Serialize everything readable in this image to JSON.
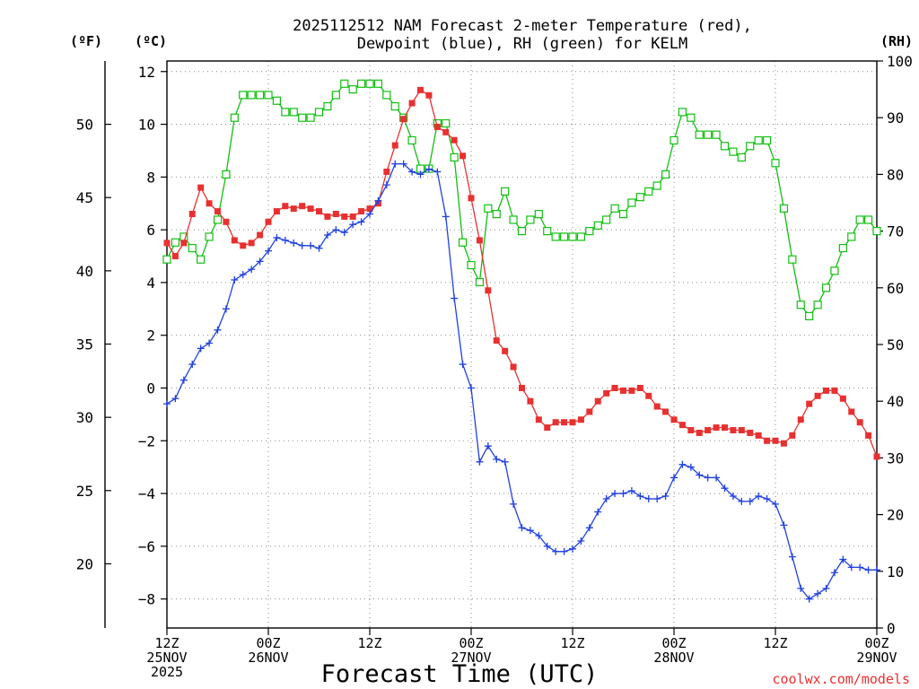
{
  "chart_data": {
    "type": "line",
    "title": [
      "2025112512 NAM Forecast 2-meter Temperature (red),",
      "Dewpoint (blue), RH (green) for KELM"
    ],
    "xlabel": "Forecast Time (UTC)",
    "credit": "coolwx.com/models",
    "units": {
      "fahrenheit": "(ºF)",
      "celsius": "(ºC)",
      "rh": "(RH)"
    },
    "x_range_hours": [
      0,
      84
    ],
    "x_ticks": [
      {
        "h": 0,
        "lines": [
          "12Z",
          "25NOV",
          "2025"
        ]
      },
      {
        "h": 12,
        "lines": [
          "00Z",
          "26NOV"
        ]
      },
      {
        "h": 24,
        "lines": [
          "12Z"
        ]
      },
      {
        "h": 36,
        "lines": [
          "00Z",
          "27NOV"
        ]
      },
      {
        "h": 48,
        "lines": [
          "12Z"
        ]
      },
      {
        "h": 60,
        "lines": [
          "00Z",
          "28NOV"
        ]
      },
      {
        "h": 72,
        "lines": [
          "12Z"
        ]
      },
      {
        "h": 84,
        "lines": [
          "00Z",
          "29NOV"
        ]
      }
    ],
    "celsius_axis": {
      "min": -9.1,
      "max": 12.4,
      "ticks": [
        12,
        10,
        8,
        6,
        4,
        2,
        0,
        -2,
        -4,
        -6,
        -8
      ]
    },
    "fahrenheit_ticks": [
      50,
      45,
      40,
      35,
      30,
      25,
      20
    ],
    "rh_axis": {
      "min": 0,
      "max": 100,
      "ticks": [
        100,
        90,
        80,
        70,
        60,
        50,
        40,
        30,
        20,
        10,
        0
      ]
    },
    "colors": {
      "temperature": "#e83030",
      "dewpoint": "#2040e0",
      "rh": "#10c010"
    },
    "series": [
      {
        "name": "Temperature",
        "unit": "C",
        "marker": "filled-square",
        "x": [
          0,
          1,
          2,
          3,
          4,
          5,
          6,
          7,
          8,
          9,
          10,
          11,
          12,
          13,
          14,
          15,
          16,
          17,
          18,
          19,
          20,
          21,
          22,
          23,
          24,
          25,
          26,
          27,
          28,
          29,
          30,
          31,
          32,
          33,
          34,
          35,
          36,
          37,
          38,
          39,
          40,
          41,
          42,
          43,
          44,
          45,
          46,
          47,
          48,
          49,
          50,
          51,
          52,
          53,
          54,
          55,
          56,
          57,
          58,
          59,
          60,
          61,
          62,
          63,
          64,
          65,
          66,
          67,
          68,
          69,
          70,
          71,
          72,
          73,
          74,
          75,
          76,
          77,
          78,
          79,
          80,
          81,
          82,
          83,
          84
        ],
        "values": [
          5.5,
          5.0,
          5.5,
          6.6,
          7.6,
          7.0,
          6.7,
          6.3,
          5.6,
          5.4,
          5.5,
          5.8,
          6.3,
          6.7,
          6.9,
          6.8,
          6.9,
          6.8,
          6.7,
          6.5,
          6.6,
          6.5,
          6.5,
          6.7,
          6.8,
          7.0,
          8.2,
          9.2,
          10.2,
          10.8,
          11.3,
          11.1,
          9.9,
          9.7,
          9.4,
          8.8,
          7.2,
          5.6,
          3.7,
          1.8,
          1.4,
          0.8,
          0.0,
          -0.5,
          -1.2,
          -1.5,
          -1.3,
          -1.3,
          -1.3,
          -1.2,
          -0.9,
          -0.5,
          -0.2,
          0.0,
          -0.1,
          -0.1,
          0.0,
          -0.3,
          -0.7,
          -0.9,
          -1.2,
          -1.4,
          -1.6,
          -1.7,
          -1.6,
          -1.5,
          -1.5,
          -1.6,
          -1.6,
          -1.7,
          -1.8,
          -2.0,
          -2.0,
          -2.1,
          -1.8,
          -1.2,
          -0.6,
          -0.3,
          -0.1,
          -0.1,
          -0.4,
          -0.9,
          -1.3,
          -1.8,
          -2.6
        ]
      },
      {
        "name": "Dewpoint",
        "unit": "C",
        "marker": "plus",
        "x": [
          0,
          1,
          2,
          3,
          4,
          5,
          6,
          7,
          8,
          9,
          10,
          11,
          12,
          13,
          14,
          15,
          16,
          17,
          18,
          19,
          20,
          21,
          22,
          23,
          24,
          25,
          26,
          27,
          28,
          29,
          30,
          31,
          32,
          33,
          34,
          35,
          36,
          37,
          38,
          39,
          40,
          41,
          42,
          43,
          44,
          45,
          46,
          47,
          48,
          49,
          50,
          51,
          52,
          53,
          54,
          55,
          56,
          57,
          58,
          59,
          60,
          61,
          62,
          63,
          64,
          65,
          66,
          67,
          68,
          69,
          70,
          71,
          72,
          73,
          74,
          75,
          76,
          77,
          78,
          79,
          80,
          81,
          82,
          83,
          84
        ],
        "values": [
          -0.6,
          -0.4,
          0.3,
          0.9,
          1.5,
          1.7,
          2.2,
          3.0,
          4.1,
          4.3,
          4.5,
          4.8,
          5.2,
          5.7,
          5.6,
          5.5,
          5.4,
          5.4,
          5.3,
          5.8,
          6.0,
          5.9,
          6.2,
          6.3,
          6.6,
          7.1,
          7.7,
          8.5,
          8.5,
          8.2,
          8.1,
          8.3,
          8.2,
          6.5,
          3.4,
          0.9,
          0.0,
          -2.8,
          -2.2,
          -2.7,
          -2.8,
          -4.4,
          -5.3,
          -5.4,
          -5.6,
          -6.0,
          -6.2,
          -6.2,
          -6.1,
          -5.8,
          -5.3,
          -4.7,
          -4.2,
          -4.0,
          -4.0,
          -3.9,
          -4.1,
          -4.2,
          -4.2,
          -4.1,
          -3.4,
          -2.9,
          -3.0,
          -3.3,
          -3.4,
          -3.4,
          -3.8,
          -4.1,
          -4.3,
          -4.3,
          -4.1,
          -4.2,
          -4.4,
          -5.2,
          -6.4,
          -7.6,
          -8.0,
          -7.8,
          -7.6,
          -7.0,
          -6.5,
          -6.8,
          -6.8,
          -6.9,
          -6.9
        ]
      },
      {
        "name": "RH",
        "unit": "%",
        "marker": "open-square",
        "x": [
          0,
          1,
          2,
          3,
          4,
          5,
          6,
          7,
          8,
          9,
          10,
          11,
          12,
          13,
          14,
          15,
          16,
          17,
          18,
          19,
          20,
          21,
          22,
          23,
          24,
          25,
          26,
          27,
          28,
          29,
          30,
          31,
          32,
          33,
          34,
          35,
          36,
          37,
          38,
          39,
          40,
          41,
          42,
          43,
          44,
          45,
          46,
          47,
          48,
          49,
          50,
          51,
          52,
          53,
          54,
          55,
          56,
          57,
          58,
          59,
          60,
          61,
          62,
          63,
          64,
          65,
          66,
          67,
          68,
          69,
          70,
          71,
          72,
          73,
          74,
          75,
          76,
          77,
          78,
          79,
          80,
          81,
          82,
          83,
          84
        ],
        "values": [
          65,
          68,
          69,
          67,
          65,
          69,
          72,
          80,
          90,
          94,
          94,
          94,
          94,
          93,
          91,
          91,
          90,
          90,
          91,
          92,
          94,
          96,
          95,
          96,
          96,
          96,
          94,
          92,
          90,
          86,
          81,
          81,
          89,
          89,
          83,
          68,
          64,
          61,
          74,
          73,
          77,
          72,
          70,
          72,
          73,
          70,
          69,
          69,
          69,
          69,
          70,
          71,
          72,
          74,
          73,
          75,
          76,
          77,
          78,
          80,
          86,
          91,
          90,
          87,
          87,
          87,
          85,
          84,
          83,
          85,
          86,
          86,
          82,
          74,
          65,
          57,
          55,
          57,
          60,
          63,
          67,
          69,
          72,
          72,
          70
        ]
      }
    ]
  }
}
